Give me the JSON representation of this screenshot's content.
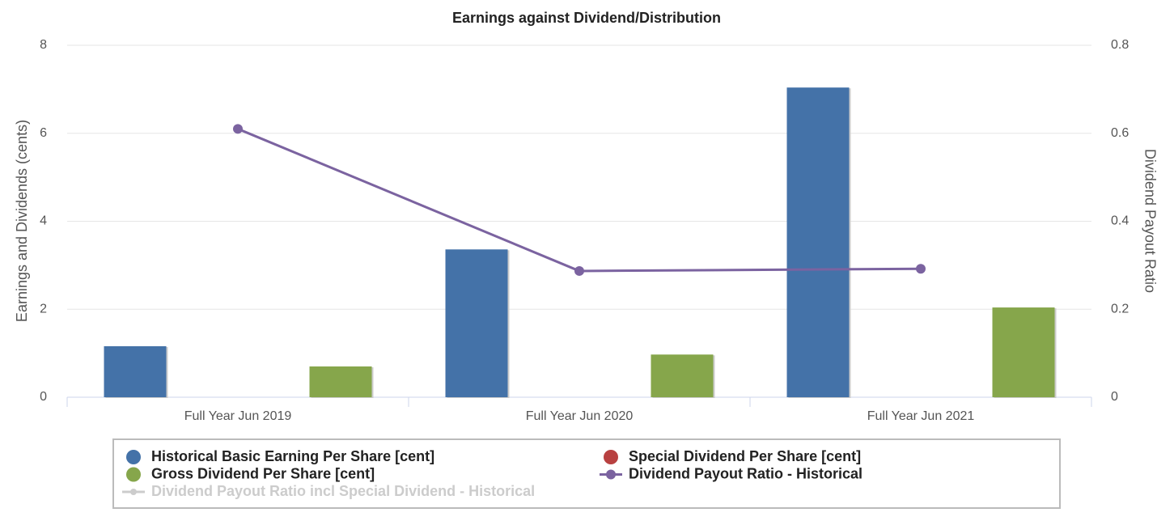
{
  "chart_data": {
    "type": "bar",
    "title": "Earnings against Dividend/Distribution",
    "y_label": "Earnings and Dividends (cents)",
    "y2_label": "Dividend Payout Ratio",
    "categories": [
      "Full Year Jun 2019",
      "Full Year Jun 2020",
      "Full Year Jun 2021"
    ],
    "ylim": [
      0,
      8
    ],
    "yticks": [
      0,
      2,
      4,
      6,
      8
    ],
    "y2lim": [
      0,
      0.8
    ],
    "y2ticks": [
      0,
      0.2,
      0.4,
      0.6,
      0.8
    ],
    "grid": true,
    "series": [
      {
        "name": "Historical Basic Earning Per Share [cent]",
        "type": "bar",
        "color": "#4472a8",
        "values": [
          1.16,
          3.36,
          7.04
        ]
      },
      {
        "name": "Special Dividend Per Share [cent]",
        "type": "bar",
        "color": "#b84141",
        "values": [
          0,
          0,
          0
        ]
      },
      {
        "name": "Gross Dividend Per Share [cent]",
        "type": "bar",
        "color": "#86a64b",
        "values": [
          0.7,
          0.97,
          2.04
        ]
      },
      {
        "name": "Dividend Payout Ratio - Historical",
        "type": "line",
        "axis": "y2",
        "color": "#7b63a0",
        "values": [
          0.61,
          0.287,
          0.292
        ]
      },
      {
        "name": "Dividend Payout Ratio incl Special Dividend - Historical",
        "type": "line",
        "axis": "y2",
        "color": "#cccccc",
        "hidden": true,
        "values": [
          null,
          null,
          null
        ]
      }
    ]
  }
}
